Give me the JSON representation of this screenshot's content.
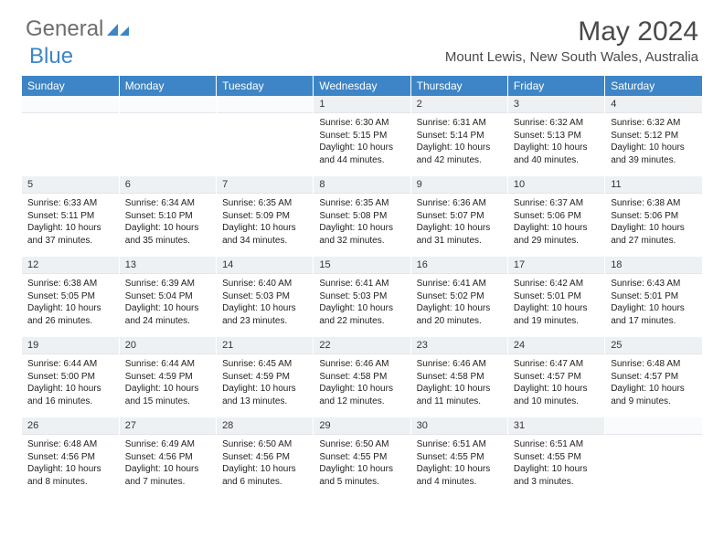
{
  "logo": {
    "text1": "General",
    "text2": "Blue",
    "color1": "#6d6d6d",
    "color2": "#3d85c6"
  },
  "title": "May 2024",
  "location": "Mount Lewis, New South Wales, Australia",
  "headerColor": "#3d85c6",
  "dayNumBg": "#eef1f4",
  "columns": [
    "Sunday",
    "Monday",
    "Tuesday",
    "Wednesday",
    "Thursday",
    "Friday",
    "Saturday"
  ],
  "weeks": [
    [
      null,
      null,
      null,
      {
        "n": "1",
        "sr": "6:30 AM",
        "ss": "5:15 PM",
        "dl": "10 hours and 44 minutes."
      },
      {
        "n": "2",
        "sr": "6:31 AM",
        "ss": "5:14 PM",
        "dl": "10 hours and 42 minutes."
      },
      {
        "n": "3",
        "sr": "6:32 AM",
        "ss": "5:13 PM",
        "dl": "10 hours and 40 minutes."
      },
      {
        "n": "4",
        "sr": "6:32 AM",
        "ss": "5:12 PM",
        "dl": "10 hours and 39 minutes."
      }
    ],
    [
      {
        "n": "5",
        "sr": "6:33 AM",
        "ss": "5:11 PM",
        "dl": "10 hours and 37 minutes."
      },
      {
        "n": "6",
        "sr": "6:34 AM",
        "ss": "5:10 PM",
        "dl": "10 hours and 35 minutes."
      },
      {
        "n": "7",
        "sr": "6:35 AM",
        "ss": "5:09 PM",
        "dl": "10 hours and 34 minutes."
      },
      {
        "n": "8",
        "sr": "6:35 AM",
        "ss": "5:08 PM",
        "dl": "10 hours and 32 minutes."
      },
      {
        "n": "9",
        "sr": "6:36 AM",
        "ss": "5:07 PM",
        "dl": "10 hours and 31 minutes."
      },
      {
        "n": "10",
        "sr": "6:37 AM",
        "ss": "5:06 PM",
        "dl": "10 hours and 29 minutes."
      },
      {
        "n": "11",
        "sr": "6:38 AM",
        "ss": "5:06 PM",
        "dl": "10 hours and 27 minutes."
      }
    ],
    [
      {
        "n": "12",
        "sr": "6:38 AM",
        "ss": "5:05 PM",
        "dl": "10 hours and 26 minutes."
      },
      {
        "n": "13",
        "sr": "6:39 AM",
        "ss": "5:04 PM",
        "dl": "10 hours and 24 minutes."
      },
      {
        "n": "14",
        "sr": "6:40 AM",
        "ss": "5:03 PM",
        "dl": "10 hours and 23 minutes."
      },
      {
        "n": "15",
        "sr": "6:41 AM",
        "ss": "5:03 PM",
        "dl": "10 hours and 22 minutes."
      },
      {
        "n": "16",
        "sr": "6:41 AM",
        "ss": "5:02 PM",
        "dl": "10 hours and 20 minutes."
      },
      {
        "n": "17",
        "sr": "6:42 AM",
        "ss": "5:01 PM",
        "dl": "10 hours and 19 minutes."
      },
      {
        "n": "18",
        "sr": "6:43 AM",
        "ss": "5:01 PM",
        "dl": "10 hours and 17 minutes."
      }
    ],
    [
      {
        "n": "19",
        "sr": "6:44 AM",
        "ss": "5:00 PM",
        "dl": "10 hours and 16 minutes."
      },
      {
        "n": "20",
        "sr": "6:44 AM",
        "ss": "4:59 PM",
        "dl": "10 hours and 15 minutes."
      },
      {
        "n": "21",
        "sr": "6:45 AM",
        "ss": "4:59 PM",
        "dl": "10 hours and 13 minutes."
      },
      {
        "n": "22",
        "sr": "6:46 AM",
        "ss": "4:58 PM",
        "dl": "10 hours and 12 minutes."
      },
      {
        "n": "23",
        "sr": "6:46 AM",
        "ss": "4:58 PM",
        "dl": "10 hours and 11 minutes."
      },
      {
        "n": "24",
        "sr": "6:47 AM",
        "ss": "4:57 PM",
        "dl": "10 hours and 10 minutes."
      },
      {
        "n": "25",
        "sr": "6:48 AM",
        "ss": "4:57 PM",
        "dl": "10 hours and 9 minutes."
      }
    ],
    [
      {
        "n": "26",
        "sr": "6:48 AM",
        "ss": "4:56 PM",
        "dl": "10 hours and 8 minutes."
      },
      {
        "n": "27",
        "sr": "6:49 AM",
        "ss": "4:56 PM",
        "dl": "10 hours and 7 minutes."
      },
      {
        "n": "28",
        "sr": "6:50 AM",
        "ss": "4:56 PM",
        "dl": "10 hours and 6 minutes."
      },
      {
        "n": "29",
        "sr": "6:50 AM",
        "ss": "4:55 PM",
        "dl": "10 hours and 5 minutes."
      },
      {
        "n": "30",
        "sr": "6:51 AM",
        "ss": "4:55 PM",
        "dl": "10 hours and 4 minutes."
      },
      {
        "n": "31",
        "sr": "6:51 AM",
        "ss": "4:55 PM",
        "dl": "10 hours and 3 minutes."
      },
      null
    ]
  ],
  "labels": {
    "sunrise": "Sunrise: ",
    "sunset": "Sunset: ",
    "daylight": "Daylight: "
  }
}
